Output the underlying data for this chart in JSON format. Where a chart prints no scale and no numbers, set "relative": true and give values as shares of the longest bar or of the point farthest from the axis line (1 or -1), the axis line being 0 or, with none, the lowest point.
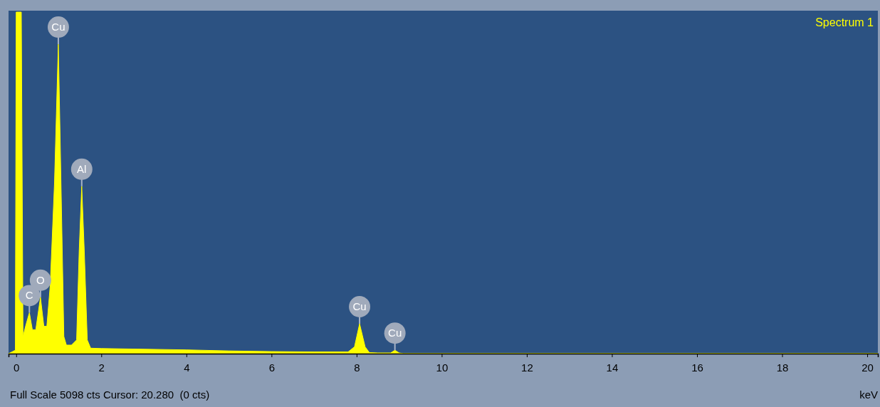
{
  "chart_data": {
    "type": "area",
    "relative": true,
    "xlabel": "keV",
    "color": "#ffff00",
    "xlim": [
      -0.18,
      20.25
    ],
    "xticks": [
      0,
      2,
      4,
      6,
      8,
      10,
      12,
      14,
      16,
      18,
      20
    ],
    "grid": false,
    "x": [
      -0.18,
      -0.02,
      0.0,
      0.12,
      0.16,
      0.22,
      0.31,
      0.38,
      0.46,
      0.57,
      0.65,
      0.72,
      0.8,
      0.9,
      0.99,
      1.06,
      1.12,
      1.18,
      1.3,
      1.42,
      1.48,
      1.54,
      1.6,
      1.67,
      1.75,
      2.0,
      3.0,
      4.0,
      5.0,
      6.0,
      7.0,
      7.8,
      7.95,
      8.07,
      8.2,
      8.3,
      8.5,
      8.8,
      8.9,
      9.0,
      9.1,
      20.25
    ],
    "values": [
      0,
      0.01,
      1,
      1,
      0.05,
      0.08,
      0.12,
      0.07,
      0.07,
      0.165,
      0.08,
      0.08,
      0.2,
      0.5,
      0.906,
      0.45,
      0.05,
      0.025,
      0.025,
      0.04,
      0.3,
      0.49,
      0.3,
      0.04,
      0.016,
      0.015,
      0.013,
      0.011,
      0.008,
      0.006,
      0.005,
      0.005,
      0.02,
      0.0875,
      0.02,
      0.003,
      0.002,
      0.002,
      0.01,
      0.002,
      0,
      0
    ],
    "annotations": [
      {
        "text": "C",
        "x": 0.31,
        "y": 0.12
      },
      {
        "text": "O",
        "x": 0.57,
        "y": 0.165
      },
      {
        "text": "Cu",
        "x": 0.99,
        "y": 0.906
      },
      {
        "text": "Al",
        "x": 1.54,
        "y": 0.49
      },
      {
        "text": "Cu",
        "x": 8.07,
        "y": 0.0875
      },
      {
        "text": "Cu",
        "x": 8.9,
        "y": 0.01
      },
      "Spectrum 1",
      "Full Scale 5098 cts Cursor: 20.280  (0 cts)"
    ]
  }
}
